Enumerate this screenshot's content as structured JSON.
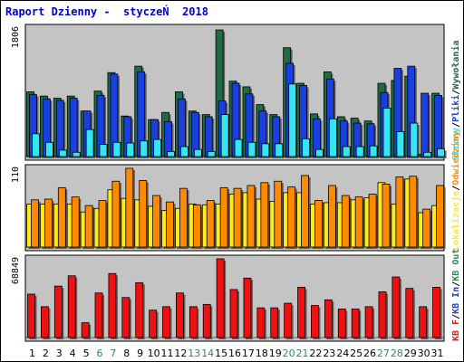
{
  "title": "Raport Dzienny -  styczeŃ  2018",
  "colors": {
    "hits": "#1f6b46",
    "files": "#1a3fe0",
    "pages": "#33e6f4",
    "sites": "#ffea1a",
    "visits": "#ff8a00",
    "kbytes": "#ee1111",
    "panel_bg": "#c4c4c4",
    "frame_bg": "#ffffff"
  },
  "right_legend": {
    "top": [
      {
        "text": "Wywołania",
        "color": "#1f6b46"
      },
      {
        "text": "Pliki",
        "color": "#1a3fe0"
      },
      {
        "text": "Strony",
        "color": "#33e6f4"
      }
    ],
    "middle": [
      {
        "text": "Odwiedziny",
        "color": "#ff8a00"
      },
      {
        "text": "Lokalizacje",
        "color": "#ffea1a"
      }
    ],
    "bottom": [
      {
        "text": "KB Out",
        "color": "#2e8b57"
      },
      {
        "text": "KB In",
        "color": "#1a3fe0"
      },
      {
        "text": "KB F",
        "color": "#ee1111"
      }
    ]
  },
  "chart_data": [
    {
      "type": "bar",
      "panel": "top",
      "ymax_label": "1806",
      "ylim": [
        0,
        1806
      ],
      "categories": [
        "1",
        "2",
        "3",
        "4",
        "5",
        "6",
        "7",
        "8",
        "9",
        "10",
        "11",
        "12",
        "13",
        "14",
        "15",
        "16",
        "17",
        "18",
        "19",
        "20",
        "21",
        "22",
        "23",
        "24",
        "25",
        "26",
        "27",
        "28",
        "29",
        "30",
        "31"
      ],
      "weekend_days": [
        "6",
        "7",
        "13",
        "14",
        "20",
        "21",
        "27",
        "28"
      ],
      "series": [
        {
          "name": "Wywołania",
          "values": [
            910,
            850,
            820,
            850,
            640,
            920,
            1180,
            570,
            1270,
            520,
            620,
            910,
            640,
            590,
            1780,
            1060,
            980,
            730,
            590,
            1530,
            1030,
            600,
            1190,
            560,
            540,
            500,
            1030,
            1070,
            1130,
            30,
            890
          ]
        },
        {
          "name": "Pliki",
          "values": [
            870,
            810,
            790,
            820,
            640,
            860,
            1160,
            560,
            1190,
            520,
            490,
            810,
            620,
            560,
            780,
            1030,
            880,
            640,
            560,
            1310,
            1000,
            530,
            1090,
            500,
            470,
            460,
            900,
            1240,
            1270,
            890,
            860
          ]
        },
        {
          "name": "Strony",
          "values": [
            320,
            200,
            90,
            60,
            380,
            170,
            200,
            190,
            220,
            240,
            70,
            140,
            100,
            70,
            590,
            240,
            200,
            180,
            180,
            1020,
            250,
            100,
            530,
            140,
            140,
            150,
            680,
            350,
            470,
            60,
            110
          ]
        }
      ]
    },
    {
      "type": "bar",
      "panel": "middle",
      "ymax_label": "110",
      "ylim": [
        0,
        110
      ],
      "categories": [
        "1",
        "2",
        "3",
        "4",
        "5",
        "6",
        "7",
        "8",
        "9",
        "10",
        "11",
        "12",
        "13",
        "14",
        "15",
        "16",
        "17",
        "18",
        "19",
        "20",
        "21",
        "22",
        "23",
        "24",
        "25",
        "26",
        "27",
        "28",
        "29",
        "30",
        "31"
      ],
      "series": [
        {
          "name": "Lokalizacje",
          "values": [
            60,
            60,
            60,
            60,
            49,
            54,
            80,
            68,
            66,
            57,
            51,
            54,
            60,
            59,
            60,
            74,
            76,
            67,
            64,
            76,
            76,
            60,
            62,
            62,
            66,
            69,
            90,
            60,
            95,
            48,
            58
          ]
        },
        {
          "name": "Odwiedziny",
          "values": [
            66,
            67,
            83,
            70,
            58,
            65,
            92,
            110,
            93,
            72,
            63,
            82,
            59,
            65,
            83,
            82,
            86,
            90,
            92,
            84,
            100,
            65,
            86,
            72,
            70,
            74,
            88,
            98,
            99,
            53,
            86
          ]
        }
      ]
    },
    {
      "type": "bar",
      "panel": "bottom",
      "ymax_label": "68849",
      "ylim": [
        0,
        68849
      ],
      "categories": [
        "1",
        "2",
        "3",
        "4",
        "5",
        "6",
        "7",
        "8",
        "9",
        "10",
        "11",
        "12",
        "13",
        "14",
        "15",
        "16",
        "17",
        "18",
        "19",
        "20",
        "21",
        "22",
        "23",
        "24",
        "25",
        "26",
        "27",
        "28",
        "29",
        "30",
        "31"
      ],
      "series": [
        {
          "name": "KB F",
          "values": [
            38000,
            27000,
            45000,
            54000,
            13000,
            39000,
            56000,
            35000,
            48000,
            24000,
            27000,
            39000,
            27000,
            29000,
            68849,
            42000,
            52000,
            26000,
            26000,
            30000,
            44000,
            28000,
            33000,
            25000,
            25000,
            27000,
            40000,
            53000,
            43000,
            27000,
            44000
          ]
        }
      ]
    }
  ]
}
